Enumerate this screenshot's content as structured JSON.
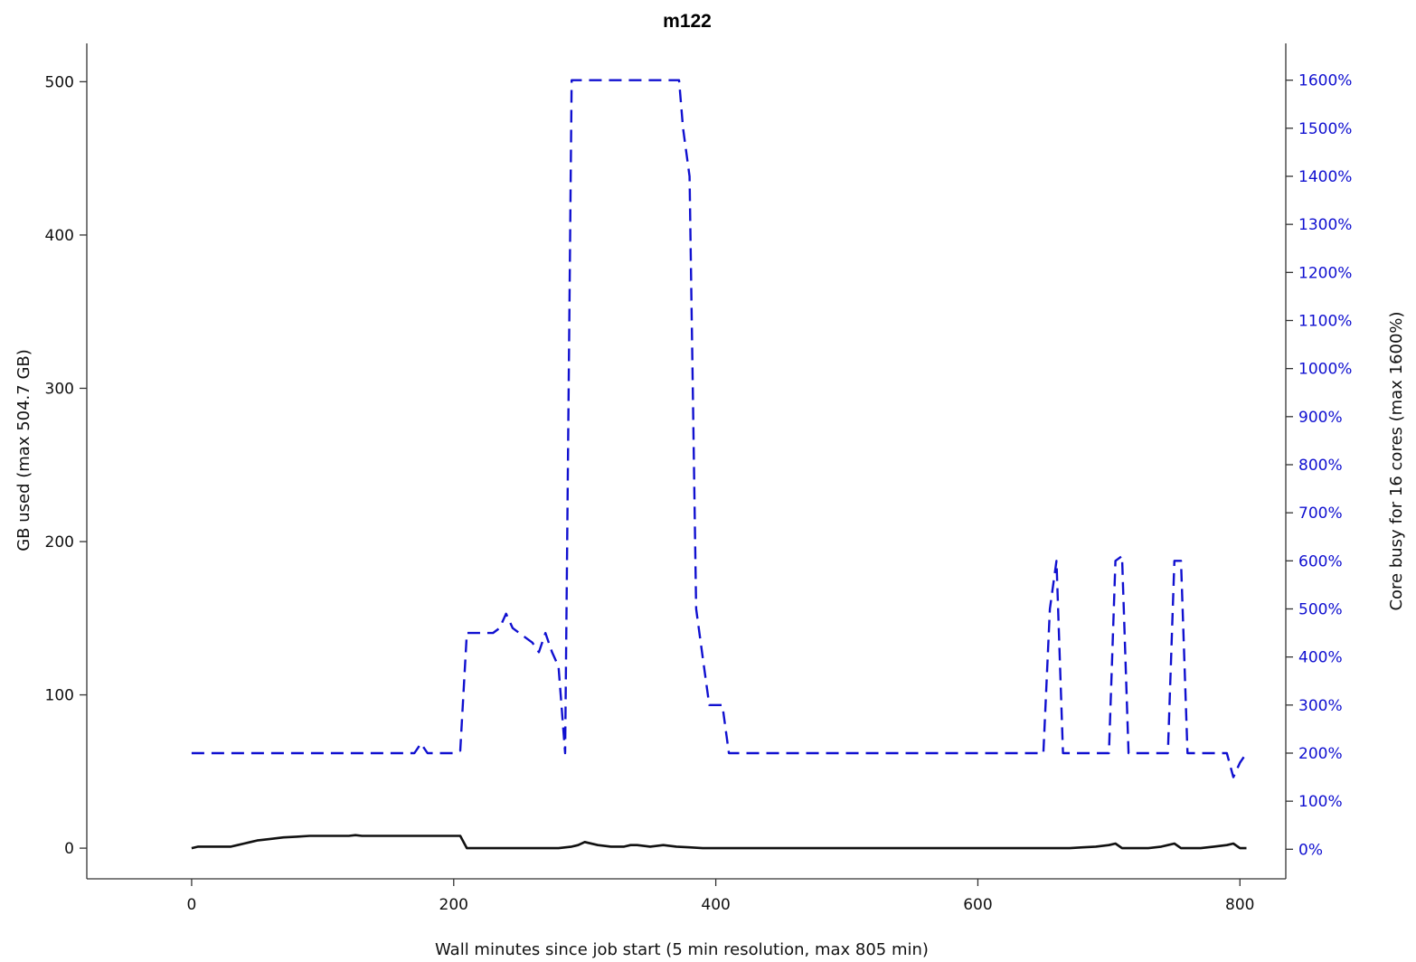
{
  "colors": {
    "memory": "#111111",
    "cpu": "#1010d0",
    "axis": "#333333",
    "background": "#ffffff"
  },
  "chart_data": {
    "type": "line",
    "title": "m122",
    "xlabel": "Wall minutes since job start (5 min resolution, max 805 min)",
    "ylabel": "GB used (max 504.7 GB)",
    "ylabel_right": "Core busy for 16 cores (max 1600%)",
    "xlim": [
      -80,
      835
    ],
    "ylim": [
      -20,
      525
    ],
    "ylim_right": [
      -61.5,
      1676.5
    ],
    "x_ticks": [
      0,
      200,
      400,
      600,
      800
    ],
    "y_ticks": [
      0,
      100,
      200,
      300,
      400,
      500
    ],
    "y_right_ticks": [
      0,
      100,
      200,
      300,
      400,
      500,
      600,
      700,
      800,
      900,
      1000,
      1100,
      1200,
      1300,
      1400,
      1500,
      1600
    ],
    "y_right_tick_labels": [
      "0%",
      "100%",
      "200%",
      "300%",
      "400%",
      "500%",
      "600%",
      "700%",
      "800%",
      "900%",
      "1000%",
      "1100%",
      "1200%",
      "1300%",
      "1400%",
      "1500%",
      "1600%"
    ],
    "grid": false,
    "series": [
      {
        "axis": "left",
        "style": "solid",
        "x": [
          0,
          5,
          10,
          20,
          30,
          35,
          40,
          45,
          50,
          60,
          70,
          80,
          90,
          100,
          110,
          120,
          125,
          130,
          140,
          150,
          160,
          170,
          180,
          190,
          200,
          205,
          210,
          220,
          230,
          240,
          250,
          260,
          270,
          280,
          290,
          295,
          300,
          310,
          320,
          330,
          335,
          340,
          350,
          360,
          370,
          380,
          390,
          400,
          410,
          420,
          450,
          500,
          550,
          600,
          650,
          660,
          670,
          680,
          690,
          700,
          705,
          710,
          720,
          730,
          740,
          745,
          750,
          755,
          760,
          770,
          780,
          790,
          795,
          800,
          805
        ],
        "y": [
          0,
          1,
          1,
          1,
          1,
          2,
          3,
          4,
          5,
          6,
          7,
          7.5,
          8,
          8,
          8,
          8,
          8.5,
          8,
          8,
          8,
          8,
          8,
          8,
          8,
          8,
          8,
          0,
          0,
          0,
          0,
          0,
          0,
          0,
          0,
          1,
          2,
          4,
          2,
          1,
          1,
          2,
          2,
          1,
          2,
          1,
          0.5,
          0,
          0,
          0,
          0,
          0,
          0,
          0,
          0,
          0,
          0,
          0,
          0.5,
          1,
          2,
          3,
          0,
          0,
          0,
          1,
          2,
          3,
          0,
          0,
          0,
          1,
          2,
          3,
          0,
          0
        ]
      },
      {
        "axis": "right",
        "style": "dashed",
        "x": [
          0,
          50,
          100,
          150,
          170,
          175,
          180,
          190,
          200,
          205,
          210,
          215,
          220,
          230,
          235,
          240,
          245,
          250,
          260,
          265,
          270,
          275,
          280,
          285,
          290,
          300,
          320,
          340,
          360,
          372,
          375,
          380,
          385,
          390,
          395,
          400,
          405,
          410,
          420,
          450,
          500,
          550,
          600,
          650,
          655,
          660,
          665,
          670,
          680,
          690,
          700,
          705,
          710,
          715,
          720,
          730,
          740,
          745,
          750,
          755,
          760,
          770,
          780,
          790,
          795,
          800,
          805
        ],
        "y": [
          200,
          200,
          200,
          200,
          200,
          220,
          200,
          200,
          200,
          205,
          450,
          450,
          450,
          450,
          460,
          490,
          460,
          450,
          430,
          410,
          450,
          410,
          380,
          200,
          1600,
          1600,
          1600,
          1600,
          1600,
          1600,
          1500,
          1400,
          500,
          400,
          300,
          300,
          300,
          200,
          200,
          200,
          200,
          200,
          200,
          200,
          500,
          600,
          200,
          200,
          200,
          200,
          200,
          600,
          610,
          200,
          200,
          200,
          200,
          200,
          600,
          600,
          200,
          200,
          200,
          200,
          150,
          180,
          200
        ]
      }
    ]
  }
}
